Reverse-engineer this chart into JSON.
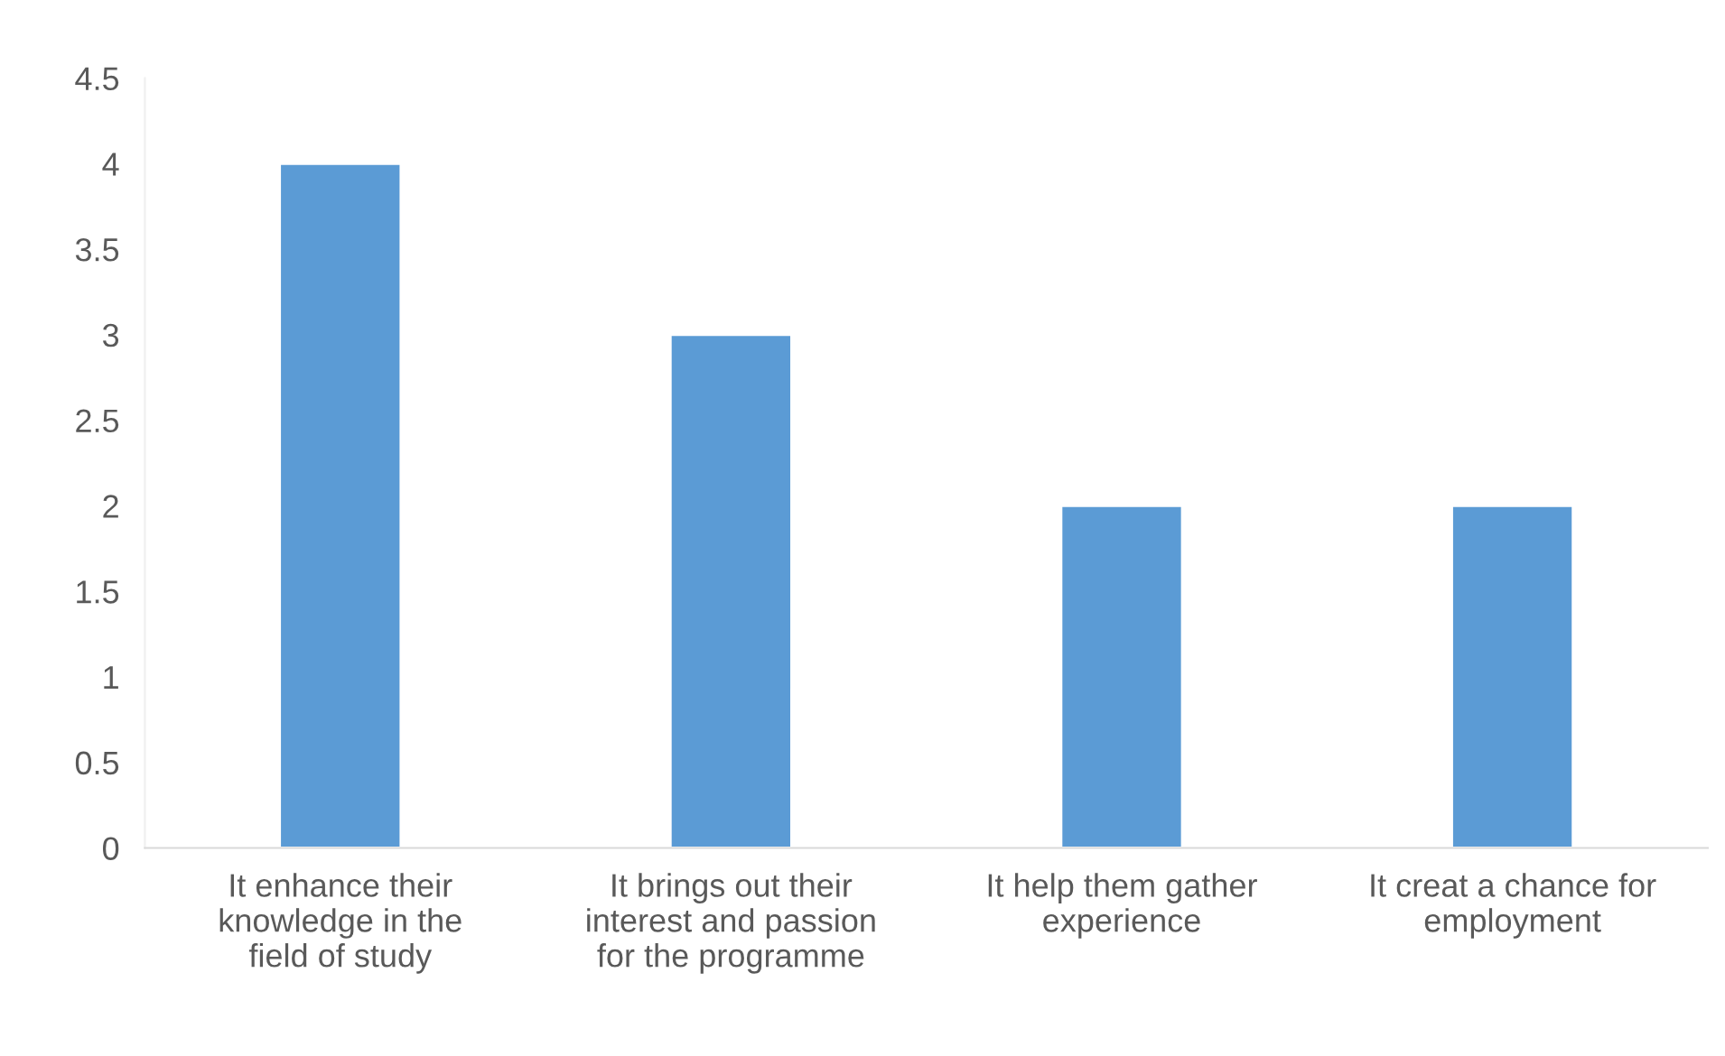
{
  "chart_data": {
    "type": "bar",
    "categories": [
      "It enhance their\nknowledge in the\nfield of study",
      "It brings out their\ninterest and passion\nfor the programme",
      "It help them gather\nexperience",
      "It creat a chance for\nemployment"
    ],
    "values": [
      4,
      3,
      2,
      2
    ],
    "color": "#5b9bd5",
    "ylim": [
      0,
      4.5
    ],
    "yticks": [
      0,
      0.5,
      1,
      1.5,
      2,
      2.5,
      3,
      3.5,
      4,
      4.5
    ],
    "grid": false,
    "legend": false
  }
}
